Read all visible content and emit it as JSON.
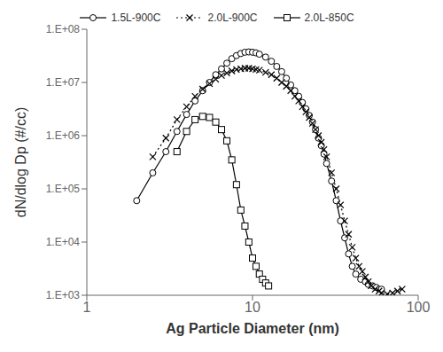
{
  "chart_data": {
    "type": "line",
    "xlabel": "Ag Particle Diameter (nm)",
    "ylabel": "dN/dlog Dp (#/cc)",
    "log": true,
    "grid": false,
    "legend": "top",
    "xlim": [
      1,
      100
    ],
    "ylim": [
      1000,
      100000000
    ],
    "xticks": [
      1,
      10,
      100
    ],
    "yticks": [
      {
        "value": 1000,
        "label": "1.E+03"
      },
      {
        "value": 10000,
        "label": "1.E+04"
      },
      {
        "value": 100000,
        "label": "1.E+05"
      },
      {
        "value": 1000000,
        "label": "1.E+06"
      },
      {
        "value": 10000000,
        "label": "1.E+07"
      },
      {
        "value": 100000000,
        "label": "1.E+08"
      }
    ],
    "series": [
      {
        "name": "1.5L-900C",
        "color": "#000000",
        "marker": "circle",
        "line_style": "solid",
        "x": [
          2.0,
          2.5,
          3.0,
          3.5,
          4.0,
          4.5,
          5.0,
          5.5,
          6.0,
          6.5,
          7.0,
          7.5,
          8.0,
          8.5,
          9.0,
          9.5,
          10.0,
          10.5,
          11.0,
          12.0,
          13.0,
          14.0,
          15.0,
          16.0,
          17.0,
          18.0,
          19.0,
          20.0,
          21.0,
          22.0,
          23.0,
          24.0,
          25.0,
          26.0,
          27.0,
          28.0,
          30.0,
          32.0,
          34.0,
          36.0,
          38.0,
          40.0,
          42.0,
          45.0,
          48.0,
          50.0,
          53.0,
          56.0,
          60.0
        ],
        "values": [
          60000,
          200000,
          500000,
          1200000,
          2500000,
          4500000,
          7000000,
          10000000,
          14000000,
          18000000,
          23000000,
          28000000,
          32000000,
          35000000,
          37000000,
          37500000,
          37000000,
          36000000,
          34000000,
          30000000,
          25000000,
          20000000,
          16000000,
          12000000,
          9000000,
          7000000,
          5500000,
          4200000,
          3200000,
          2400000,
          1800000,
          1300000,
          900000,
          650000,
          450000,
          300000,
          140000,
          60000,
          25000,
          12000,
          6000,
          3500,
          2500,
          2000,
          1800,
          1600,
          1500,
          1400,
          1300
        ]
      },
      {
        "name": "2.0L-900C",
        "color": "#000000",
        "marker": "x",
        "line_style": "dotted",
        "x": [
          2.5,
          3.0,
          3.5,
          4.0,
          4.5,
          5.0,
          5.5,
          6.0,
          6.5,
          7.0,
          7.5,
          8.0,
          8.5,
          9.0,
          9.5,
          10.0,
          10.5,
          11.0,
          12.0,
          13.0,
          14.0,
          15.0,
          16.0,
          17.0,
          18.0,
          19.0,
          20.0,
          21.0,
          22.0,
          23.0,
          24.0,
          25.0,
          26.0,
          27.0,
          28.0,
          30.0,
          32.0,
          34.0,
          36.0,
          38.0,
          40.0,
          42.0,
          44.0,
          46.0,
          48.0,
          50.0,
          52.0,
          55.0,
          58.0,
          60.0,
          65.0,
          70.0,
          75.0,
          80.0
        ],
        "values": [
          400000,
          900000,
          2000000,
          3500000,
          5500000,
          7500000,
          9500000,
          11500000,
          13500000,
          15000000,
          16500000,
          17500000,
          18000000,
          18500000,
          18500000,
          18000000,
          17500000,
          17000000,
          15500000,
          14000000,
          12000000,
          10000000,
          8500000,
          7000000,
          5500000,
          4500000,
          3500000,
          2800000,
          2200000,
          1700000,
          1300000,
          1000000,
          750000,
          550000,
          400000,
          200000,
          100000,
          50000,
          25000,
          14000,
          8000,
          5000,
          3500,
          2800,
          2200,
          1800,
          1500,
          1300,
          1200,
          1100,
          1050,
          1100,
          1200,
          1300
        ]
      },
      {
        "name": "2.0L-850C",
        "color": "#000000",
        "marker": "square",
        "line_style": "solid",
        "x": [
          3.5,
          4.0,
          4.5,
          5.0,
          5.5,
          6.0,
          6.5,
          7.0,
          7.5,
          8.0,
          8.5,
          9.0,
          9.5,
          10.0,
          10.5,
          11.0,
          11.5,
          12.0,
          12.5
        ],
        "values": [
          500000,
          1200000,
          2000000,
          2300000,
          2200000,
          1800000,
          1300000,
          800000,
          350000,
          120000,
          40000,
          20000,
          10000,
          5000,
          3500,
          2500,
          2000,
          1700,
          1500
        ]
      }
    ]
  }
}
